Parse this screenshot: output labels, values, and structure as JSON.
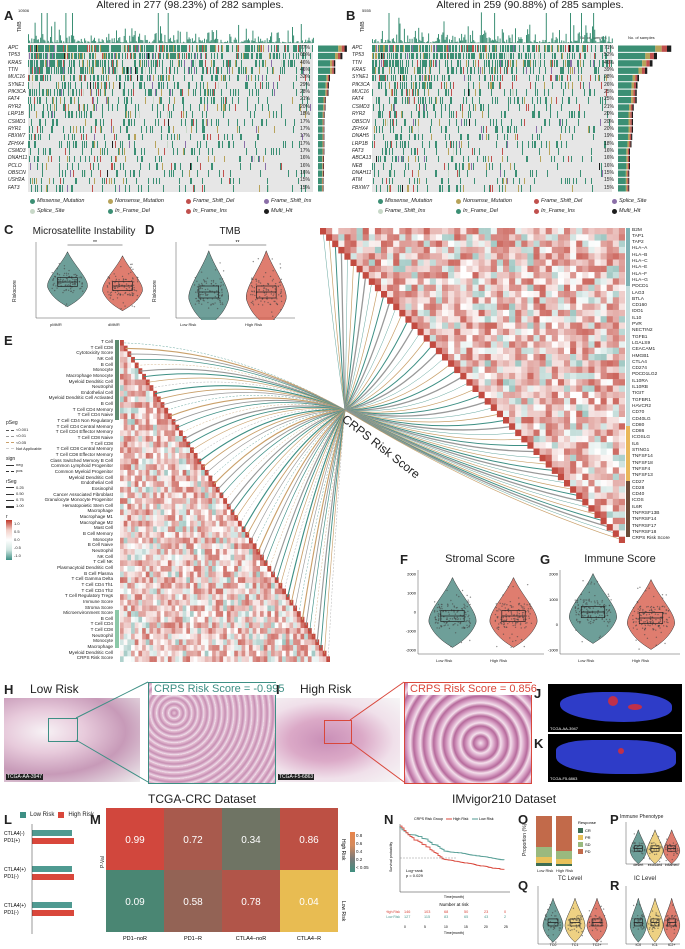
{
  "panels": {
    "A": {
      "label": "A",
      "title": "Altered in 277 (98.23%) of 282 samples.",
      "tmb_label": "TMB",
      "tmb_max": "10506",
      "bar_label": "No. of samples",
      "bar_max": "217",
      "bar_min": "0",
      "genes": [
        "APC",
        "TP53",
        "KRAS",
        "TTN",
        "MUC16",
        "SYNE1",
        "PIK3CA",
        "FAT4",
        "RYR2",
        "LRP1B",
        "CSMD1",
        "RYR1",
        "FBXW7",
        "ZFHX4",
        "CSMD3",
        "DNAH11",
        "PCLO",
        "OBSCN",
        "USH2A",
        "FAT3"
      ],
      "pcts": [
        "77%",
        "65%",
        "46%",
        "46%",
        "32%",
        "29%",
        "28%",
        "21%",
        "20%",
        "18%",
        "17%",
        "17%",
        "17%",
        "17%",
        "17%",
        "16%",
        "16%",
        "16%",
        "15%",
        "15%"
      ],
      "legend": [
        "Missense_Mutation",
        "Nonsense_Mutation",
        "Frame_Shift_Del",
        "Frame_Shift_Ins",
        "Splice_Site",
        "In_Frame_Del",
        "In_Frame_Ins",
        "Multi_Hit"
      ]
    },
    "B": {
      "label": "B",
      "title": "Altered in 259 (90.88%) of 285 samples.",
      "tmb_label": "TMB",
      "tmb_max": "5555",
      "bar_label": "No. of samples",
      "bar_max": "200",
      "bar_min": "0",
      "genes": [
        "APC",
        "TP53",
        "TTN",
        "KRAS",
        "SYNE1",
        "PIK3CA",
        "MUC16",
        "FAT4",
        "CSMD3",
        "RYR2",
        "OBSCN",
        "ZFHX4",
        "DNAH5",
        "LRP1B",
        "FAT3",
        "ABCA13",
        "NEB",
        "DNAH11",
        "ATM",
        "FBXW7"
      ],
      "pcts": [
        "71%",
        "52%",
        "46%",
        "39%",
        "28%",
        "26%",
        "25%",
        "25%",
        "21%",
        "20%",
        "20%",
        "20%",
        "19%",
        "18%",
        "16%",
        "16%",
        "16%",
        "15%",
        "15%",
        "15%"
      ],
      "legend": [
        "Missense_Mutation",
        "Nonsense_Mutation",
        "Frame_Shift_Del",
        "Splice_Site",
        "Frame_Shift_Ins",
        "In_Frame_Del",
        "In_Frame_Ins",
        "Multi_Hit"
      ]
    },
    "C": {
      "label": "C",
      "title": "Microsatellite Instability",
      "ylabel": "Riskscore",
      "groups": [
        "pMMR",
        "dMMR"
      ],
      "sig": "**"
    },
    "D": {
      "label": "D",
      "title": "TMB",
      "ylabel": "Riskscore",
      "groups": [
        "Low Risk",
        "High Risk"
      ],
      "sig": "**"
    },
    "E": {
      "label": "E",
      "cells": [
        "T Cell",
        "T Cell CD8",
        "Cytotoxicity Score",
        "NK Cell",
        "B Cell",
        "Monocyte",
        "Macrophage Monocyte",
        "Myeloid Dendritic Cell",
        "Neutrophil",
        "Endothelial Cell",
        "Myeloid Dendritic Cell Activated",
        "B Cell",
        "T Cell CD4 Memory",
        "T Cell CD4 Naive",
        "T Cell CD4 Non Regulatory",
        "T Cell CD4 Central Memory",
        "T Cell CD4 Effector Memory",
        "T Cell CD8 Naive",
        "T Cell CD8",
        "T Cell CD8 Central Memory",
        "T Cell CD8 Effector Memory",
        "Class Switched Memory B Cell",
        "Common Lymphoid Progenitor",
        "Common Myeloid Progenitor",
        "Myeloid Dendritic Cell",
        "Endothelial Cell",
        "Eosinophil",
        "Cancer Associated Fibroblast",
        "Granulocyte Monocyte Progenitor",
        "Hematopoietic Stem Cell",
        "Macrophage",
        "Macrophage M1",
        "Macrophage M2",
        "Mast Cell",
        "B Cell Memory",
        "Monocyte",
        "B Cell Naive",
        "Neutrophil",
        "NK Cell",
        "T Cell NK",
        "Plasmacytoid Dendritic Cell",
        "B Cell Plasma",
        "T Cell Gamma Delta",
        "T Cell CD4 Th1",
        "T Cell CD4 Th2",
        "T Cell Regulatory Tregs",
        "Immune Score",
        "Stroma Score",
        "Microenvironment Score",
        "B Cell",
        "T Cell CD4",
        "T Cell CD8",
        "Neutrophil",
        "Monocyte",
        "Macrophage",
        "Myeloid Dendritic Cell",
        "CRPS Risk Score"
      ],
      "legend": {
        "pSeg": "pSeg",
        "p_items": [
          "<0.001",
          "<0.01",
          "<0.05",
          "Not Applicable"
        ],
        "sign": "sign",
        "sign_items": [
          "neg",
          "pos"
        ],
        "rSeg": "rSeg",
        "r_items": [
          "0.25",
          "0.50",
          "0.75",
          "1.00"
        ],
        "r": "r",
        "r_ticks": [
          "1.0",
          "0.5",
          "0.0",
          "-0.5",
          "-1.0"
        ]
      }
    },
    "crps_label": "CRPS Risk Score",
    "right_genes": [
      "B2M",
      "TAP1",
      "TAP2",
      "HLA−A",
      "HLA−B",
      "HLA−C",
      "HLA−E",
      "HLA−F",
      "HLA−G",
      "PDCD1",
      "LAG3",
      "BTLA",
      "CD160",
      "IDO1",
      "IL10",
      "PVR",
      "NECTIN2",
      "TGFB1",
      "LGALS9",
      "CEACAM1",
      "HMGB1",
      "CTLA4",
      "CD274",
      "PDCD1LG2",
      "IL10RA",
      "IL10RB",
      "TIGIT",
      "TGFBR1",
      "HAVCR2",
      "CD70",
      "CD40LG",
      "CD80",
      "CD86",
      "ICOSLG",
      "IL6",
      "STING1",
      "TNFSF14",
      "TNFSF18",
      "TNFSF4",
      "TNFSF13",
      "CD27",
      "CD28",
      "CD40",
      "ICOS",
      "IL6R",
      "TNFRSF13B",
      "TNFRSF14",
      "TNFRSF17",
      "TNFRSF18",
      "CRPS Risk Score"
    ],
    "F": {
      "label": "F",
      "title": "Stromal Score",
      "groups": [
        "Low Risk",
        "High Risk"
      ],
      "yticks": [
        "2000",
        "1000",
        "0",
        "-1000",
        "-2000"
      ]
    },
    "G": {
      "label": "G",
      "title": "Immune Score",
      "groups": [
        "Low Risk",
        "High Risk"
      ],
      "yticks": [
        "2000",
        "1000",
        "0",
        "-1000"
      ]
    },
    "H": {
      "label": "H",
      "title": "Low Risk",
      "sample": "TCGA-AA-3947",
      "score_text": "CRPS Risk Score = -0.995"
    },
    "I": {
      "label": "I",
      "title": "High Risk",
      "sample": "TCGA-F5-6863",
      "score_text": "CRPS Risk Score = 0.856"
    },
    "J": {
      "label": "J",
      "sample": "TCGA-AA-3947"
    },
    "K": {
      "label": "K",
      "sample": "TCGA-F5-6863"
    },
    "tcga_title": "TCGA-CRC Dataset",
    "imvigor_title": "IMvigor210 Dataset",
    "L": {
      "label": "L",
      "legend": [
        "Low Risk",
        "High Risk"
      ],
      "rows": [
        "CTLA4(-)\nPD1(+)",
        "CTLA4(+)\nPD1(-)",
        "CTLA4(+)\nPD1(-)"
      ]
    },
    "M": {
      "label": "M",
      "ylabel": "P-Val",
      "xlabels": [
        "PD1−noR",
        "PD1−R",
        "CTLA4−noR",
        "CTLA4−R"
      ],
      "rows": [
        "High Risk",
        "Low Risk"
      ],
      "legend_ticks": [
        "0.8",
        "0.6",
        "0.4",
        "0.2",
        "< 0.05"
      ]
    },
    "N": {
      "label": "N",
      "legend_title": "CRPS Risk Group",
      "legend": [
        "High Risk",
        "Low Risk"
      ],
      "ylabel": "Survival probability",
      "xlabel": "Time(month)",
      "logrank": "Log−rank\np = 0.029",
      "risk_title": "Number at risk",
      "xlabel2": "Time(month)"
    },
    "O": {
      "label": "O",
      "ylabel": "Proportion (%)",
      "groups": [
        "Low Risk",
        "High Risk"
      ],
      "legend_title": "Response",
      "legend": [
        "CR",
        "PR",
        "SD",
        "PD"
      ]
    },
    "P": {
      "label": "P",
      "title": "Immune Phenotype",
      "ylabel": "Riskscore",
      "groups": [
        "desert",
        "excluded",
        "inflamed"
      ]
    },
    "Q": {
      "label": "Q",
      "title": "TC Level",
      "ylabel": "Riskscore",
      "groups": [
        "TC0",
        "TC1",
        "TC2+"
      ]
    },
    "R": {
      "label": "R",
      "title": "IC Level",
      "ylabel": "Riskscore",
      "groups": [
        "IC0",
        "IC1",
        "IC2+"
      ]
    }
  },
  "chart_data": [
    {
      "type": "heatmap",
      "title": "",
      "rows": [
        "High Risk",
        "Low Risk"
      ],
      "categories": [
        "PD1−noR",
        "PD1−R",
        "CTLA4−noR",
        "CTLA4−R"
      ],
      "values": [
        [
          0.99,
          0.72,
          0.34,
          0.86
        ],
        [
          0.09,
          0.58,
          0.78,
          0.04
        ]
      ]
    },
    {
      "type": "table",
      "title": "Number at risk",
      "rows": [
        "High Risk",
        "Low Risk"
      ],
      "x": [
        0,
        5,
        10,
        15,
        20,
        25
      ],
      "values": [
        [
          146,
          103,
          68,
          50,
          23,
          0
        ],
        [
          127,
          115,
          83,
          65,
          43,
          2
        ]
      ]
    }
  ],
  "colors": {
    "missense": "#3b8f74",
    "nonsense": "#b7a35a",
    "fs_del": "#c0504d",
    "fs_ins": "#8b6fa8",
    "splice": "#c8d8c8",
    "low": "#3d7f77",
    "high": "#d4513f",
    "accent_low": "#4f9a91",
    "accent_high": "#d9473b",
    "yellow": "#e8c15a"
  }
}
